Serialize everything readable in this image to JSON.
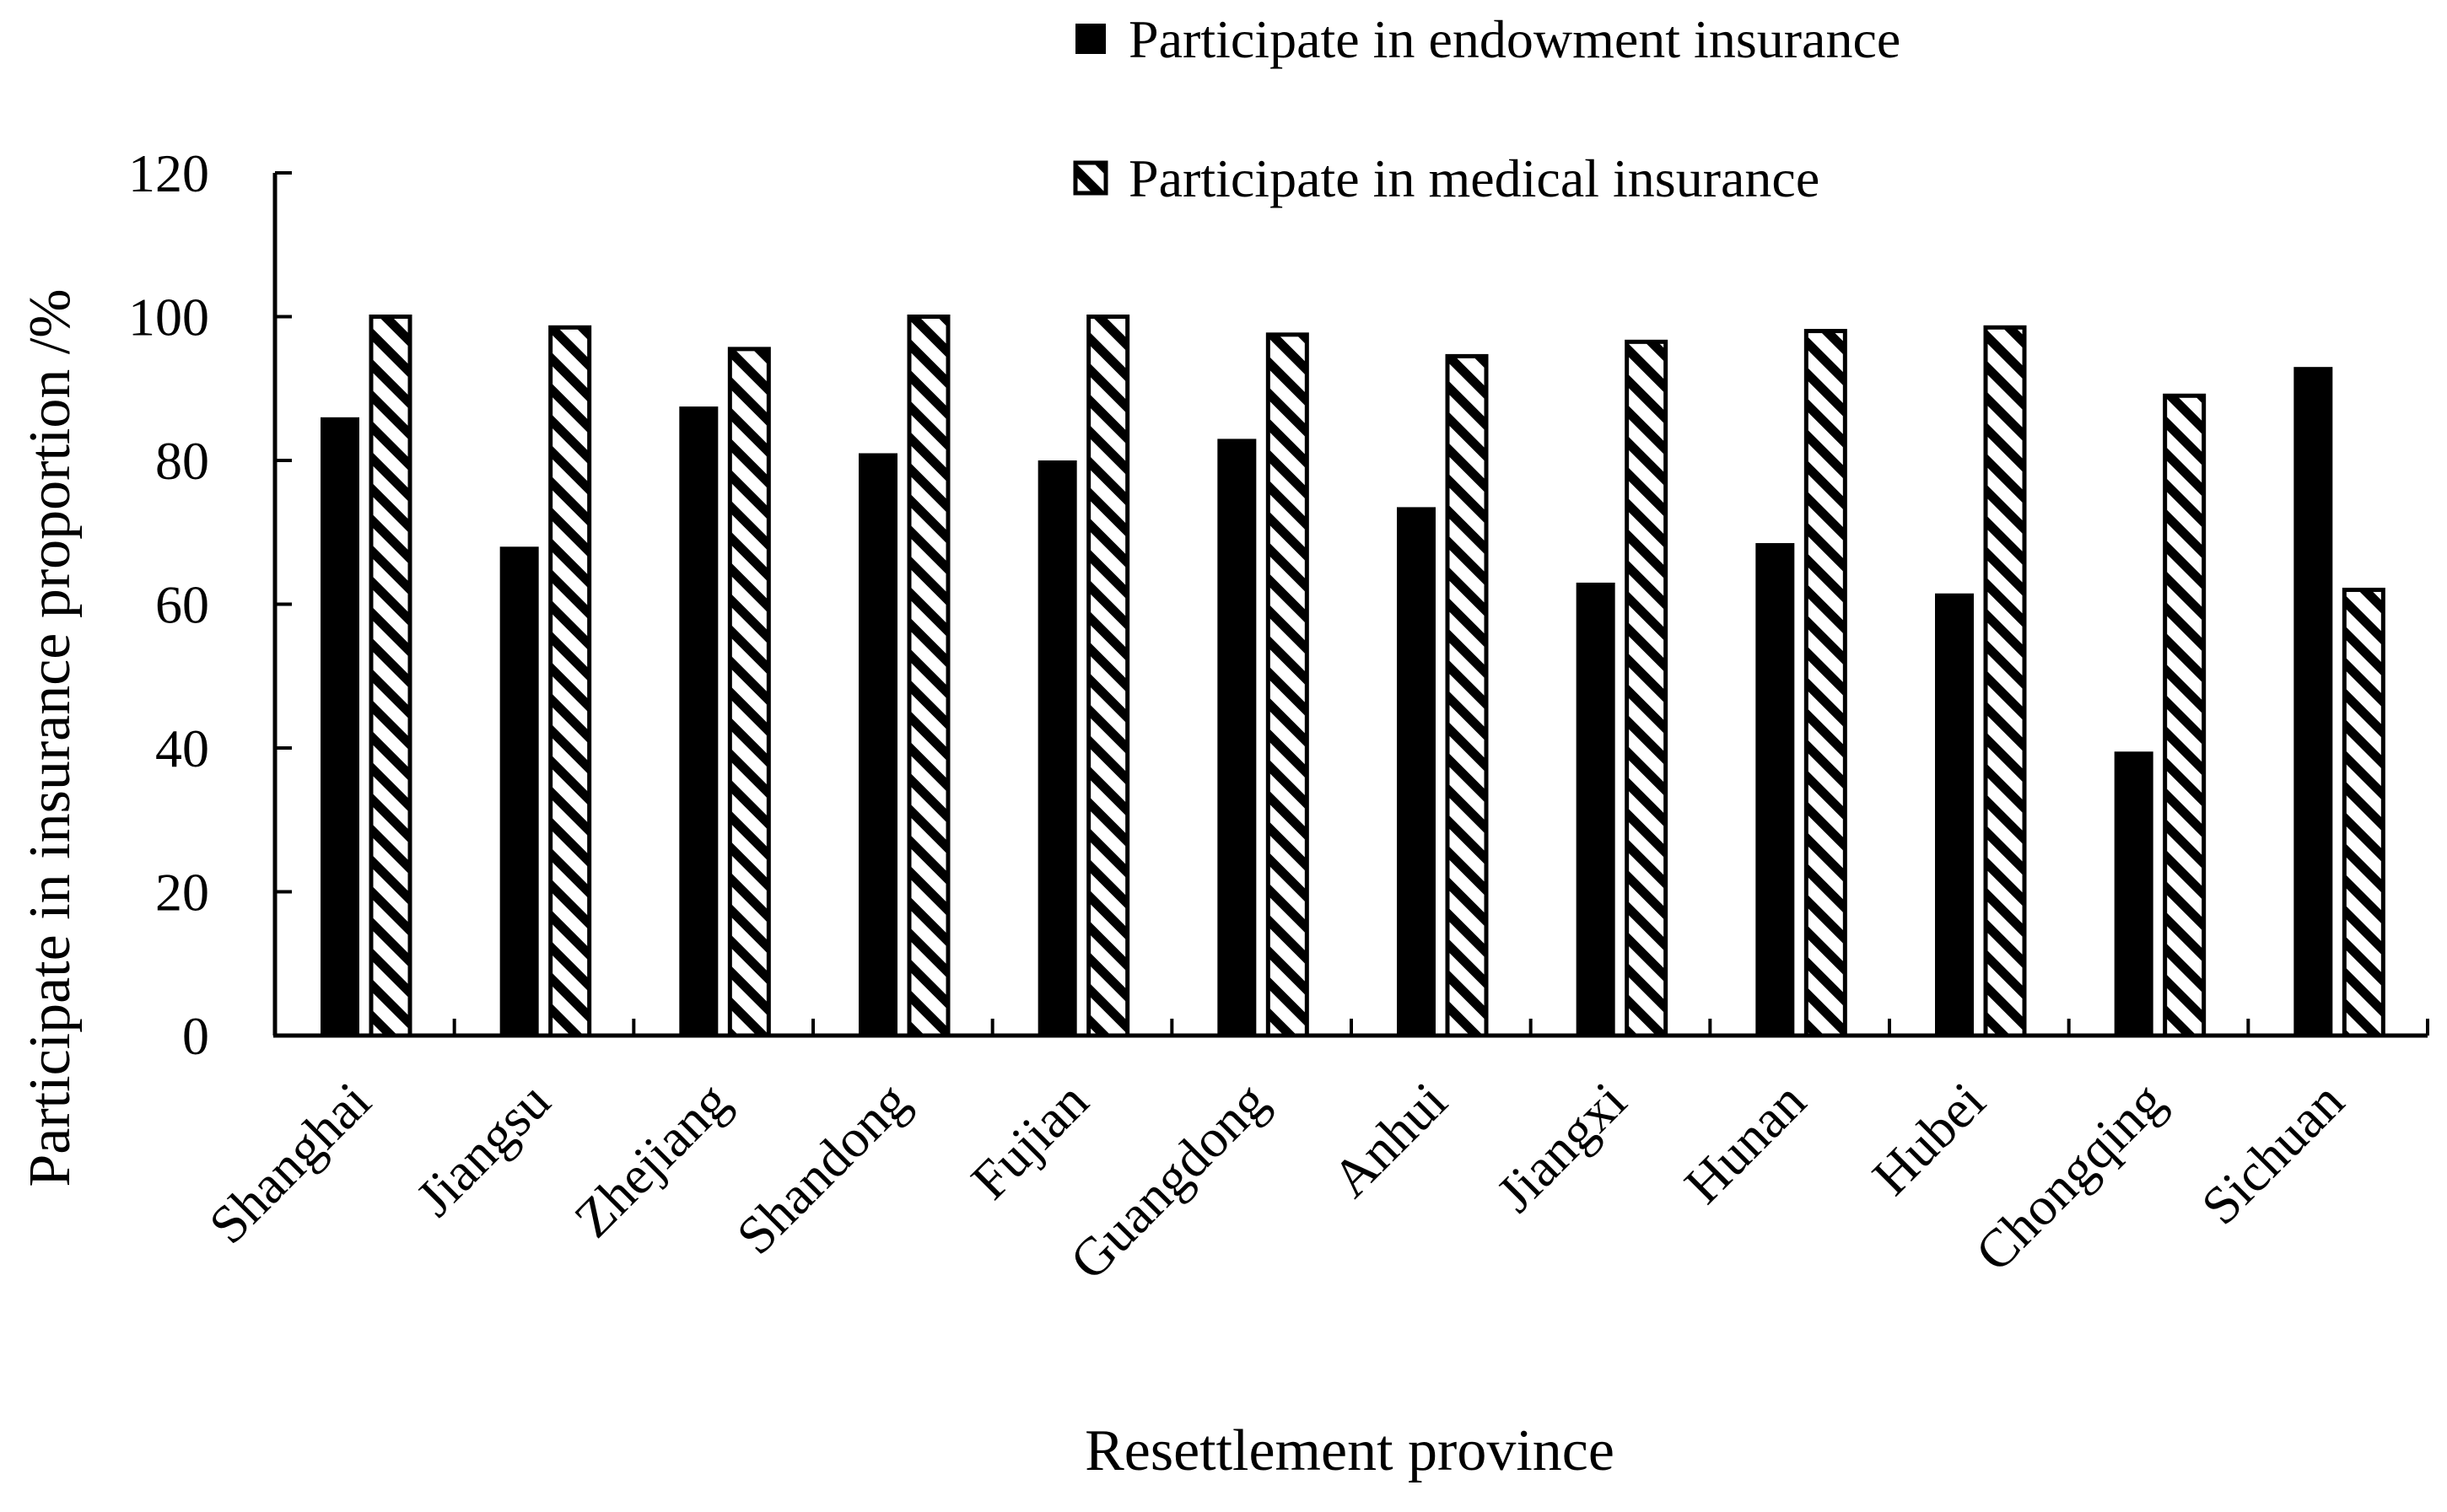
{
  "chart_data": {
    "type": "bar",
    "title": "",
    "xlabel": "Resettlement province",
    "ylabel": "Participate in insurance proportion /%",
    "ylim": [
      0,
      120
    ],
    "yticks": [
      0,
      20,
      40,
      60,
      80,
      100,
      120
    ],
    "grid": false,
    "legend_position": "top-right",
    "categories": [
      "Shanghai",
      "Jiangsu",
      "Zhejiang",
      "Shandong",
      "Fujian",
      "Guangdong",
      "Anhui",
      "Jiangxi",
      "Hunan",
      "Hubei",
      "Chongqing",
      "Sichuan"
    ],
    "series": [
      {
        "name": "Participate in endowment insurance",
        "fill": "solid",
        "color": "#000000",
        "values": [
          86,
          68,
          87.5,
          81,
          80,
          83,
          73.5,
          63,
          68.5,
          61.5,
          39.5,
          93
        ]
      },
      {
        "name": "Participate in medical insurance",
        "fill": "hatched",
        "color": "#000000",
        "values": [
          100,
          98.5,
          95.5,
          100,
          100,
          97.5,
          94.5,
          96.5,
          98,
          98.5,
          89,
          62
        ]
      }
    ]
  }
}
